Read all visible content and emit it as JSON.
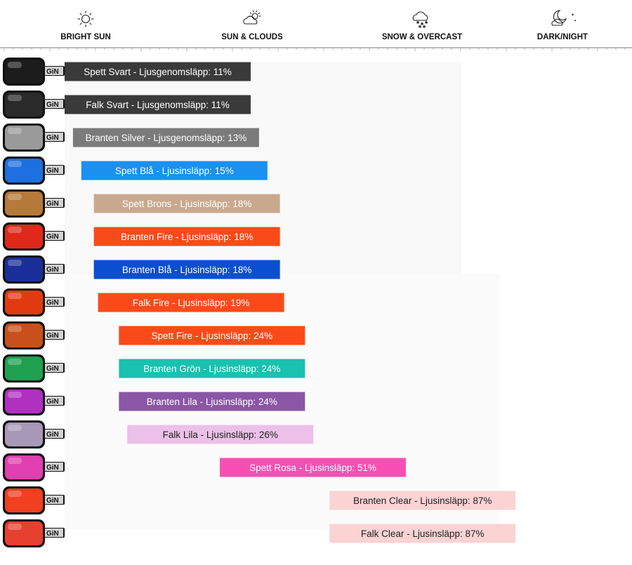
{
  "chart_data": {
    "type": "bar",
    "orientation": "horizontal",
    "title": "",
    "xlabel": "",
    "ylabel": "",
    "xlim": [
      0,
      100
    ],
    "conditions": [
      {
        "label": "BRIGHT SUN",
        "icon": "sun-icon"
      },
      {
        "label": "SUN & CLOUDS",
        "icon": "sun-cloud-icon"
      },
      {
        "label": "SNOW & OVERCAST",
        "icon": "snow-cloud-icon"
      },
      {
        "label": "DARK/NIGHT",
        "icon": "moon-cloud-icon"
      }
    ],
    "categories": [
      "Spett Svart - Ljusgenomsläpp: 11%",
      "Falk Svart - Ljusgenomsläpp: 11%",
      "Branten Silver - Ljusgenomsläpp: 13%",
      "Spett Blå - Ljusinsläpp: 15%",
      "Spett Brons - Ljusinsläpp: 18%",
      "Branten Fire - Ljusinsläpp: 18%",
      "Branten Blå - Ljusinsläpp: 18%",
      "Falk Fire - Ljusinsläpp: 19%",
      "Spett Fire - Ljusinsläpp: 24%",
      "Branten Grön - Ljusinsläpp: 24%",
      "Branten Lila - Ljusinsläpp: 24%",
      "Falk Lila - Ljusinsläpp: 26%",
      "Spett Rosa - Ljusinsläpp: 51%",
      "Branten Clear - Ljusinsläpp: 87%",
      "Falk Clear - Ljusinsläpp: 87%"
    ],
    "values": [
      11,
      11,
      13,
      15,
      18,
      18,
      18,
      19,
      24,
      24,
      24,
      26,
      51,
      87,
      87
    ],
    "colors": [
      "#3a3a3a",
      "#3a3a3a",
      "#7b7b7b",
      "#1a90f0",
      "#c9a98e",
      "#fb4a1a",
      "#0a4fd0",
      "#fb4a1a",
      "#fb4a1a",
      "#18c2ae",
      "#8a56a6",
      "#ecc0e8",
      "#f94fb4",
      "#fbd3d3",
      "#fbd3d3"
    ],
    "label_colors": [
      "#ffffff",
      "#ffffff",
      "#ffffff",
      "#ffffff",
      "#ffffff",
      "#ffffff",
      "#ffffff",
      "#ffffff",
      "#ffffff",
      "#ffffff",
      "#ffffff",
      "#222222",
      "#ffffff",
      "#222222",
      "#222222"
    ],
    "lens_colors": [
      "#1c1c1c",
      "#2a2a2a",
      "#9a9a9a",
      "#1e6fe0",
      "#b57a3a",
      "#e0291a",
      "#1a2f9a",
      "#e23a10",
      "#c8501a",
      "#20a050",
      "#b030c0",
      "#a898b8",
      "#e040b0",
      "#f04020",
      "#e84030"
    ],
    "strap_colors": [
      "#111111",
      "#111111",
      "#111111",
      "#111111",
      "#111111",
      "#111111",
      "#111111",
      "#111111",
      "#111111",
      "#111111",
      "#111111",
      "#111111",
      "#111111",
      "#111111",
      "#111111"
    ],
    "grid": false,
    "legend": "none"
  }
}
